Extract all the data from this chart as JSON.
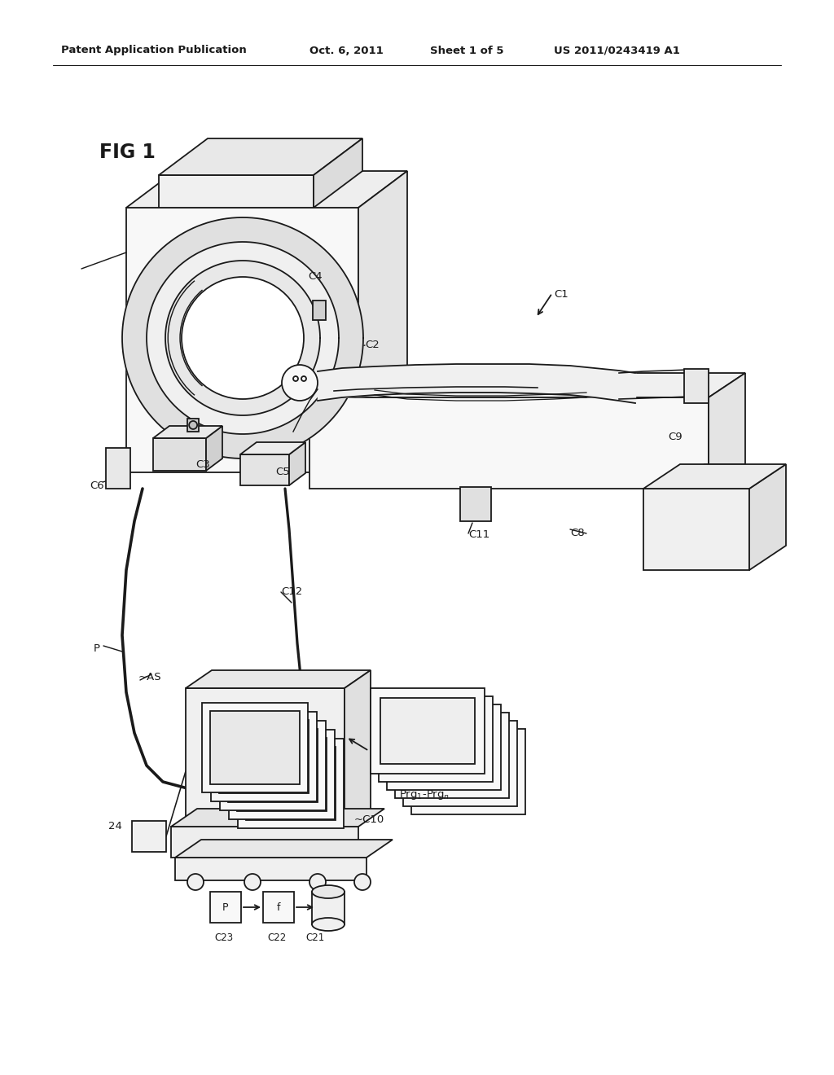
{
  "title_header": "Patent Application Publication",
  "date_header": "Oct. 6, 2011",
  "sheet_header": "Sheet 1 of 5",
  "patent_header": "US 2011/0243419 A1",
  "fig_label": "FIG 1",
  "background_color": "#ffffff",
  "line_color": "#1a1a1a",
  "lw": 1.3,
  "fig_width": 10.24,
  "fig_height": 13.2,
  "dpi": 100
}
